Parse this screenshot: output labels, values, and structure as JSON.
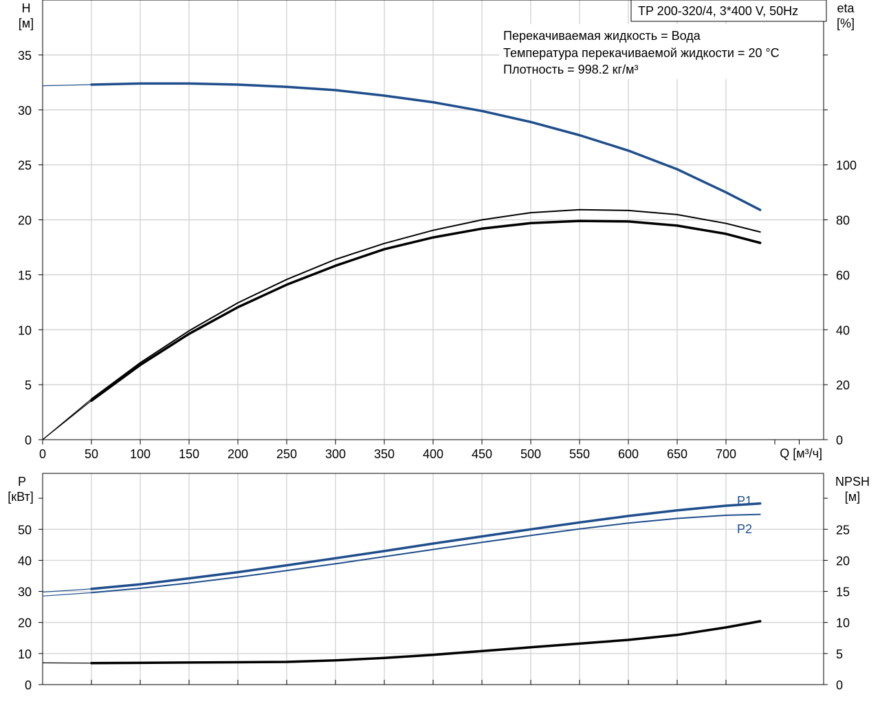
{
  "chart_data": [
    {
      "type": "line",
      "title": "TP 200-320/4, 3*400 V, 50Hz",
      "xlabel": "Q [м³/ч]",
      "x_ticks": [
        "0",
        "50",
        "100",
        "150",
        "200",
        "250",
        "300",
        "350",
        "400",
        "450",
        "500",
        "550",
        "600",
        "650",
        "700"
      ],
      "xlim": [
        0,
        800
      ],
      "ylabel_left": [
        "H",
        "[м]"
      ],
      "ylim_left": [
        0,
        40
      ],
      "y_ticks_left": [
        "0",
        "5",
        "10",
        "15",
        "20",
        "25",
        "30",
        "35"
      ],
      "ylabel_right": [
        "eta",
        "[%]"
      ],
      "ylim_right": [
        0,
        160
      ],
      "y_ticks_right": [
        "0",
        "20",
        "40",
        "60",
        "80",
        "100"
      ],
      "annotations": [
        "Перекачиваемая жидкость = Вода",
        "Температура перекачиваемой жидкости = 20 °C",
        "Плотность = 998.2 кг/м³"
      ],
      "grid": true,
      "series": [
        {
          "axis": "left",
          "color": "#1f4e8c",
          "width": 3.5,
          "x": [
            0,
            50,
            100,
            150,
            200,
            250,
            300,
            350,
            400,
            450,
            500,
            550,
            600,
            650,
            700,
            735
          ],
          "y": [
            32.2,
            32.3,
            32.4,
            32.4,
            32.3,
            32.1,
            31.8,
            31.3,
            30.7,
            29.9,
            28.9,
            27.7,
            26.3,
            24.6,
            22.5,
            20.9
          ]
        },
        {
          "axis": "right",
          "color": "#000000",
          "width": 2,
          "x": [
            0,
            50,
            100,
            150,
            200,
            250,
            300,
            350,
            400,
            450,
            500,
            550,
            600,
            650,
            700,
            735
          ],
          "y": [
            0,
            14.8,
            28.0,
            39.6,
            49.8,
            58.3,
            65.6,
            71.4,
            76.2,
            80.0,
            82.6,
            83.7,
            83.4,
            81.9,
            78.7,
            75.6
          ]
        },
        {
          "axis": "right",
          "color": "#000000",
          "width": 3.5,
          "x": [
            0,
            50,
            100,
            150,
            200,
            250,
            300,
            350,
            400,
            450,
            500,
            550,
            600,
            650,
            700,
            735
          ],
          "y": [
            0,
            14.2,
            27.2,
            38.5,
            48.2,
            56.4,
            63.3,
            69.3,
            73.6,
            76.8,
            78.8,
            79.6,
            79.4,
            77.9,
            74.9,
            71.6
          ]
        }
      ]
    },
    {
      "type": "line",
      "ylabel_left": [
        "P",
        "[кВт]"
      ],
      "ylim_left": [
        0,
        68
      ],
      "y_ticks_left": [
        "0",
        "10",
        "20",
        "30",
        "40",
        "50"
      ],
      "ylabel_right": [
        "NPSH",
        "[м]"
      ],
      "ylim_right": [
        0,
        34
      ],
      "y_ticks_right": [
        "0",
        "5",
        "10",
        "15",
        "20",
        "25"
      ],
      "xlim": [
        0,
        800
      ],
      "grid": true,
      "series": [
        {
          "name": "P1",
          "axis": "left",
          "color": "#1f4e8c",
          "width": 3.5,
          "x": [
            0,
            50,
            100,
            150,
            200,
            250,
            300,
            350,
            400,
            450,
            500,
            550,
            600,
            650,
            700,
            735
          ],
          "y": [
            29.8,
            30.8,
            32.3,
            34.2,
            36.2,
            38.4,
            40.7,
            43.0,
            45.4,
            47.7,
            50.0,
            52.2,
            54.3,
            56.1,
            57.6,
            58.3
          ]
        },
        {
          "name": "P2",
          "axis": "left",
          "color": "#1f4e8c",
          "width": 2,
          "x": [
            0,
            50,
            100,
            150,
            200,
            250,
            300,
            350,
            400,
            450,
            500,
            550,
            600,
            650,
            700,
            735
          ],
          "y": [
            28.5,
            29.6,
            31.0,
            32.7,
            34.6,
            36.7,
            38.9,
            41.2,
            43.5,
            45.8,
            48.0,
            50.1,
            52.0,
            53.5,
            54.5,
            54.8
          ]
        },
        {
          "axis": "right",
          "color": "#000000",
          "width": 3.5,
          "x": [
            0,
            50,
            100,
            150,
            200,
            250,
            300,
            350,
            400,
            450,
            500,
            550,
            600,
            650,
            700,
            735
          ],
          "y": [
            3.5,
            3.45,
            3.5,
            3.55,
            3.6,
            3.65,
            3.9,
            4.3,
            4.8,
            5.4,
            6.0,
            6.6,
            7.2,
            8.0,
            9.2,
            10.2
          ]
        }
      ]
    }
  ]
}
